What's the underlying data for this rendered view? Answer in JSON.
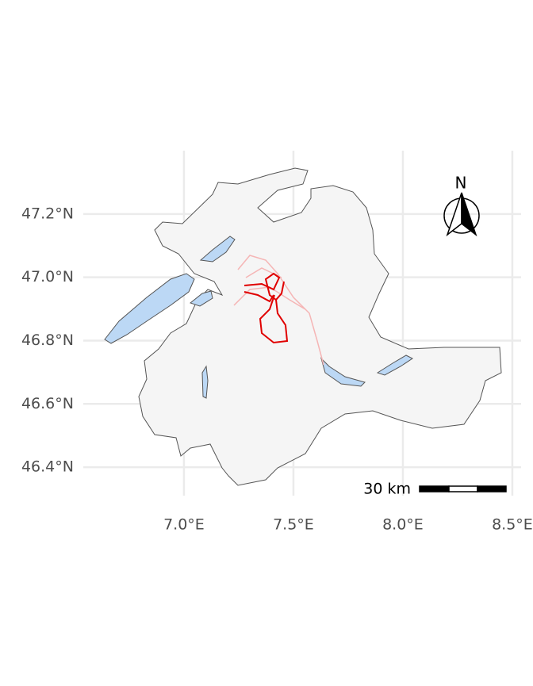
{
  "map": {
    "xlim": [
      6.54,
      8.54
    ],
    "ylim": [
      46.31,
      47.4
    ],
    "xticks": [
      {
        "value": 7.0,
        "label": "7.0°E"
      },
      {
        "value": 7.5,
        "label": "7.5°E"
      },
      {
        "value": 8.0,
        "label": "8.0°E"
      },
      {
        "value": 8.5,
        "label": "8.5°E"
      }
    ],
    "yticks": [
      {
        "value": 46.4,
        "label": "46.4°N"
      },
      {
        "value": 46.6,
        "label": "46.6°N"
      },
      {
        "value": 46.8,
        "label": "46.8°N"
      },
      {
        "value": 47.0,
        "label": "47.0°N"
      },
      {
        "value": 47.2,
        "label": "47.2°N"
      }
    ],
    "north_label": "N",
    "scale_label": "30 km"
  }
}
